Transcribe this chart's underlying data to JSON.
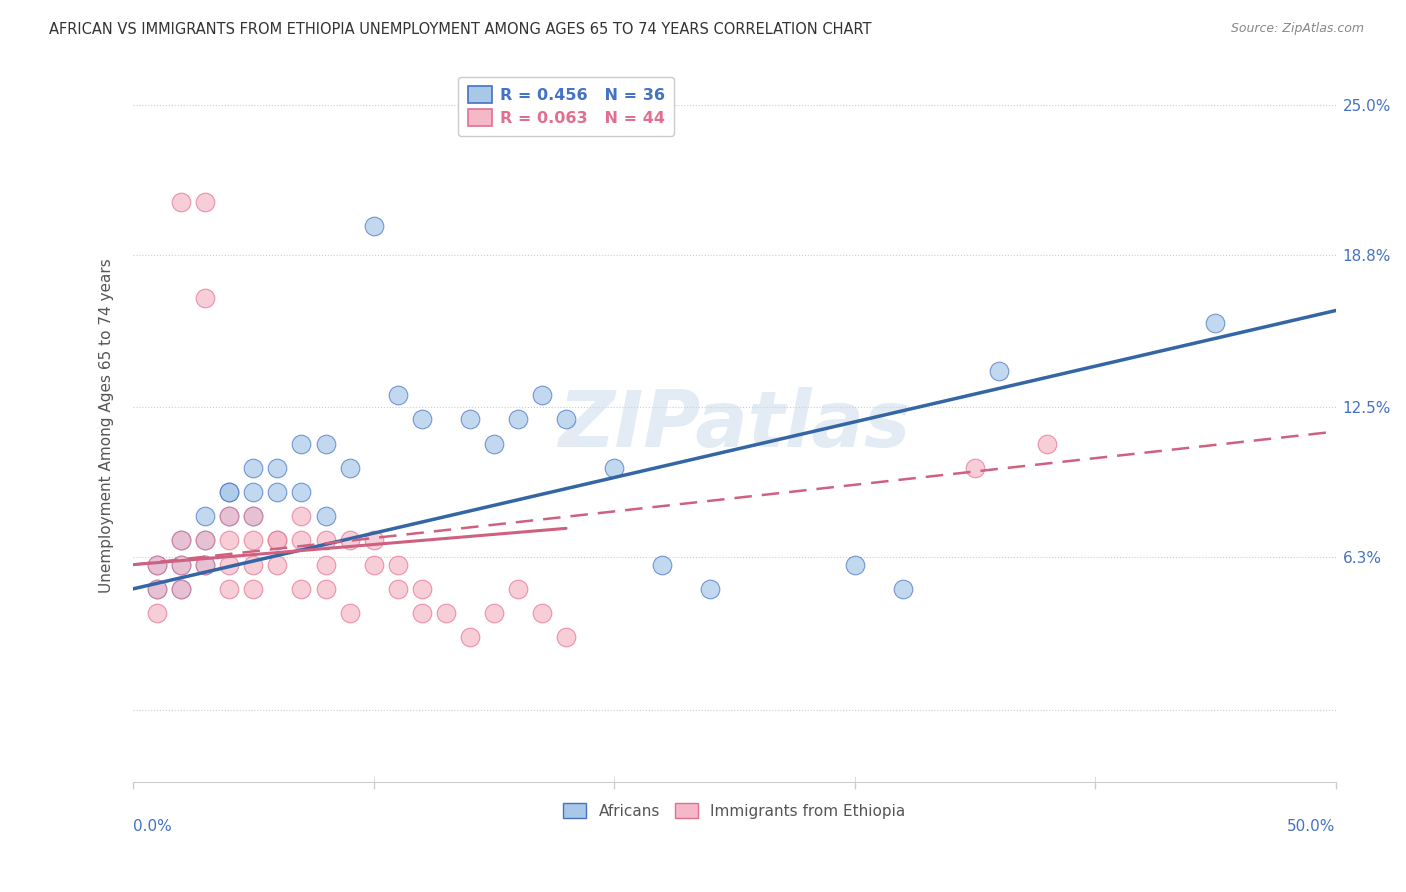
{
  "title": "AFRICAN VS IMMIGRANTS FROM ETHIOPIA UNEMPLOYMENT AMONG AGES 65 TO 74 YEARS CORRELATION CHART",
  "source": "Source: ZipAtlas.com",
  "ylabel": "Unemployment Among Ages 65 to 74 years",
  "watermark": "ZIPatlas",
  "xmin": 0.0,
  "xmax": 0.5,
  "ymin": -0.03,
  "ymax": 0.265,
  "ytick_vals": [
    0.0,
    0.063,
    0.125,
    0.188,
    0.25
  ],
  "ytick_labels": [
    "",
    "6.3%",
    "12.5%",
    "18.8%",
    "25.0%"
  ],
  "xtick_vals": [
    0.0,
    0.1,
    0.2,
    0.3,
    0.4,
    0.5
  ],
  "africans_face": "#a8c8e8",
  "africans_edge": "#4472c4",
  "ethiopia_face": "#f4b8c8",
  "ethiopia_edge": "#e07090",
  "trendline_african_color": "#3465a4",
  "trendline_ethiopia_color": "#d06080",
  "legend_blue_face": "#a8c8e8",
  "legend_blue_edge": "#4472c4",
  "legend_pink_face": "#f4b8c8",
  "legend_pink_edge": "#e07090",
  "right_axis_color": "#4472c4",
  "xlabel_color": "#4472c4",
  "title_color": "#333333",
  "source_color": "#888888",
  "grid_color": "#cccccc",
  "african_x": [
    0.01,
    0.01,
    0.02,
    0.02,
    0.02,
    0.03,
    0.03,
    0.03,
    0.04,
    0.04,
    0.04,
    0.05,
    0.05,
    0.05,
    0.06,
    0.06,
    0.07,
    0.07,
    0.08,
    0.08,
    0.09,
    0.1,
    0.11,
    0.12,
    0.14,
    0.15,
    0.16,
    0.17,
    0.18,
    0.2,
    0.22,
    0.24,
    0.3,
    0.32,
    0.36,
    0.45
  ],
  "african_y": [
    0.06,
    0.05,
    0.07,
    0.06,
    0.05,
    0.08,
    0.07,
    0.06,
    0.09,
    0.09,
    0.08,
    0.1,
    0.09,
    0.08,
    0.1,
    0.09,
    0.11,
    0.09,
    0.11,
    0.08,
    0.1,
    0.2,
    0.13,
    0.12,
    0.12,
    0.11,
    0.12,
    0.13,
    0.12,
    0.1,
    0.06,
    0.05,
    0.06,
    0.05,
    0.14,
    0.16
  ],
  "ethiopia_x": [
    0.01,
    0.01,
    0.01,
    0.02,
    0.02,
    0.02,
    0.02,
    0.03,
    0.03,
    0.03,
    0.03,
    0.04,
    0.04,
    0.04,
    0.04,
    0.05,
    0.05,
    0.05,
    0.05,
    0.06,
    0.06,
    0.06,
    0.07,
    0.07,
    0.07,
    0.08,
    0.08,
    0.08,
    0.09,
    0.09,
    0.1,
    0.1,
    0.11,
    0.11,
    0.12,
    0.12,
    0.13,
    0.14,
    0.15,
    0.16,
    0.17,
    0.18,
    0.35,
    0.38
  ],
  "ethiopia_y": [
    0.06,
    0.05,
    0.04,
    0.21,
    0.07,
    0.06,
    0.05,
    0.21,
    0.17,
    0.07,
    0.06,
    0.08,
    0.07,
    0.06,
    0.05,
    0.08,
    0.07,
    0.06,
    0.05,
    0.07,
    0.07,
    0.06,
    0.08,
    0.07,
    0.05,
    0.07,
    0.06,
    0.05,
    0.07,
    0.04,
    0.07,
    0.06,
    0.06,
    0.05,
    0.05,
    0.04,
    0.04,
    0.03,
    0.04,
    0.05,
    0.04,
    0.03,
    0.1,
    0.11
  ]
}
